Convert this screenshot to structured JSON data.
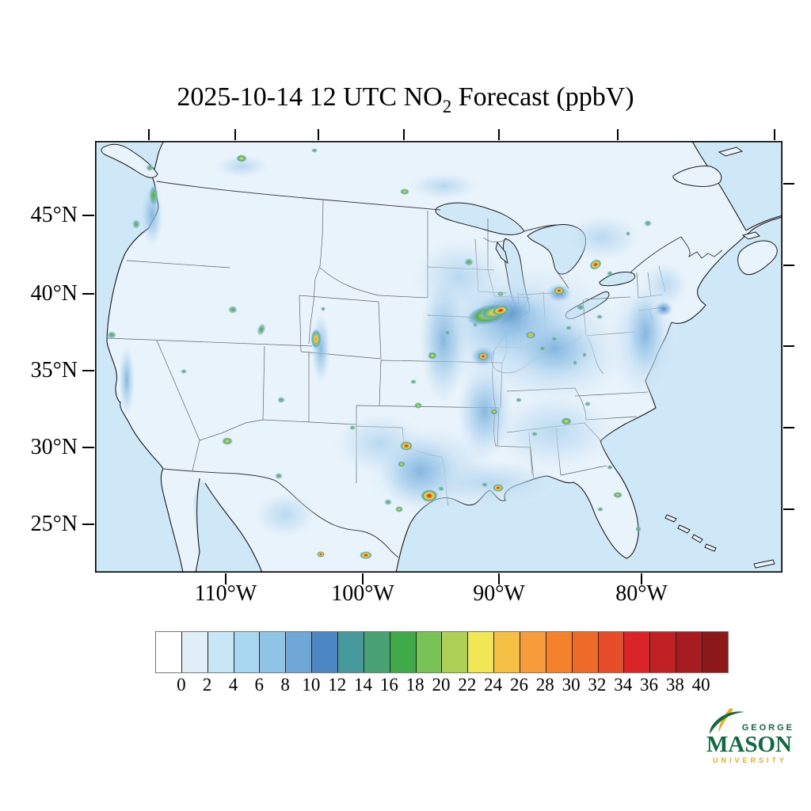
{
  "figure": {
    "title": {
      "prefix": "2025-10-14 12 UTC NO",
      "subscript": "2",
      "suffix": " Forecast (ppbV)"
    }
  },
  "map": {
    "y_axis_labels": [
      "45°N",
      "40°N",
      "35°N",
      "30°N",
      "25°N"
    ],
    "x_axis_labels": [
      "110°W",
      "100°W",
      "90°W",
      "80°W"
    ]
  },
  "colorbar": {
    "tick_values": [
      "0",
      "2",
      "4",
      "6",
      "8",
      "10",
      "12",
      "14",
      "16",
      "18",
      "20",
      "22",
      "24",
      "26",
      "28",
      "30",
      "32",
      "34",
      "36",
      "38",
      "40"
    ],
    "segment_colors": [
      "#ffffff",
      "#e1eff9",
      "#c9e6f6",
      "#a8d8f1",
      "#90c5e8",
      "#6fa8d8",
      "#4d87c3",
      "#46999c",
      "#49a273",
      "#3fa94a",
      "#79c256",
      "#aed054",
      "#f1e654",
      "#f6c045",
      "#f89b3b",
      "#f5812c",
      "#ee6a27",
      "#e74d29",
      "#da2428",
      "#c12025",
      "#a61c20",
      "#8c181b"
    ]
  },
  "logo": {
    "line1": "GEORGE",
    "line2": "MASON",
    "line3": "UNIVERSITY",
    "green": "#0e6b3f",
    "gold": "#f0ac1e"
  },
  "chart_data": {
    "type": "heatmap",
    "title": "2025-10-14 12 UTC NO2 Forecast (ppbV)",
    "units": "ppbV",
    "x_tick_labels": [
      "110°W",
      "100°W",
      "90°W",
      "80°W"
    ],
    "y_tick_labels": [
      "45°N",
      "40°N",
      "35°N",
      "30°N",
      "25°N"
    ],
    "colorbar_ticks": [
      0,
      2,
      4,
      6,
      8,
      10,
      12,
      14,
      16,
      18,
      20,
      22,
      24,
      26,
      28,
      30,
      32,
      34,
      36,
      38,
      40
    ],
    "colorbar_segments": 22,
    "legend_position": "bottom"
  }
}
